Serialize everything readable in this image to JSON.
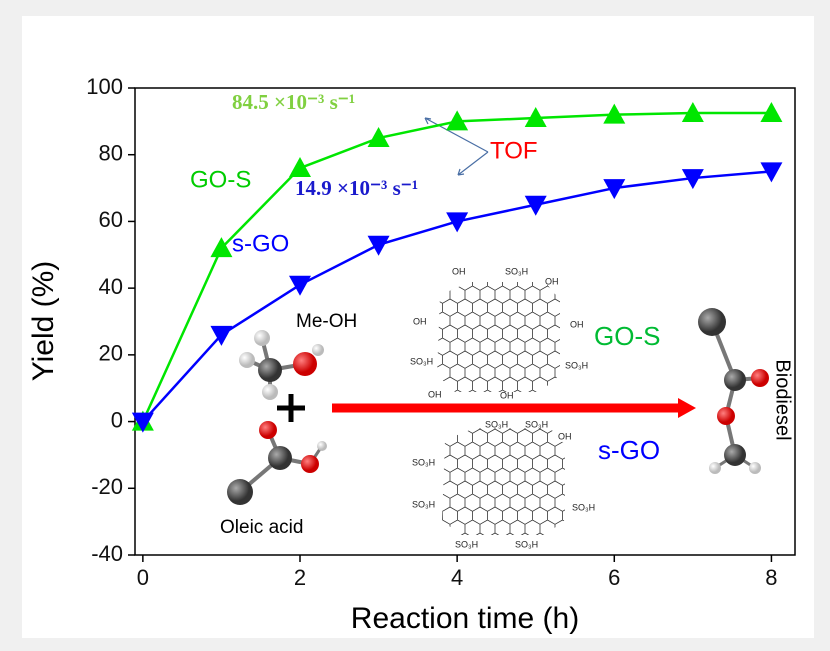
{
  "chart_data": {
    "type": "line",
    "x_label": "Reaction time (h)",
    "y_label": "Yield (%)",
    "x": [
      0,
      1,
      2,
      3,
      4,
      5,
      6,
      7,
      8
    ],
    "series": [
      {
        "name": "GO-S",
        "color": "#00e600",
        "marker": "triangle-up",
        "values": [
          0,
          52,
          76,
          85,
          90,
          91,
          92,
          92.5,
          92.5
        ]
      },
      {
        "name": "s-GO",
        "color": "#0000ff",
        "marker": "triangle-down",
        "values": [
          0,
          26,
          41,
          53,
          60,
          65,
          70,
          73,
          75
        ]
      }
    ],
    "xlim": [
      -0.1,
      8.3
    ],
    "ylim": [
      -40,
      100
    ],
    "xticks": [
      0,
      2,
      4,
      6,
      8
    ],
    "yticks": [
      -40,
      -20,
      0,
      20,
      40,
      60,
      80,
      100
    ],
    "annotations": {
      "tof_go_s": "84.5 ×10⁻³ s⁻¹",
      "tof_s_go": "14.9 ×10⁻³ s⁻¹",
      "tof": "TOF",
      "methanol": "Me-OH",
      "oleic_acid": "Oleic acid",
      "product": "Biodiesel",
      "catalyst_1": "GO-S",
      "catalyst_2": "s-GO",
      "group_oh": "OH",
      "group_so3h": "SO₃H"
    }
  }
}
